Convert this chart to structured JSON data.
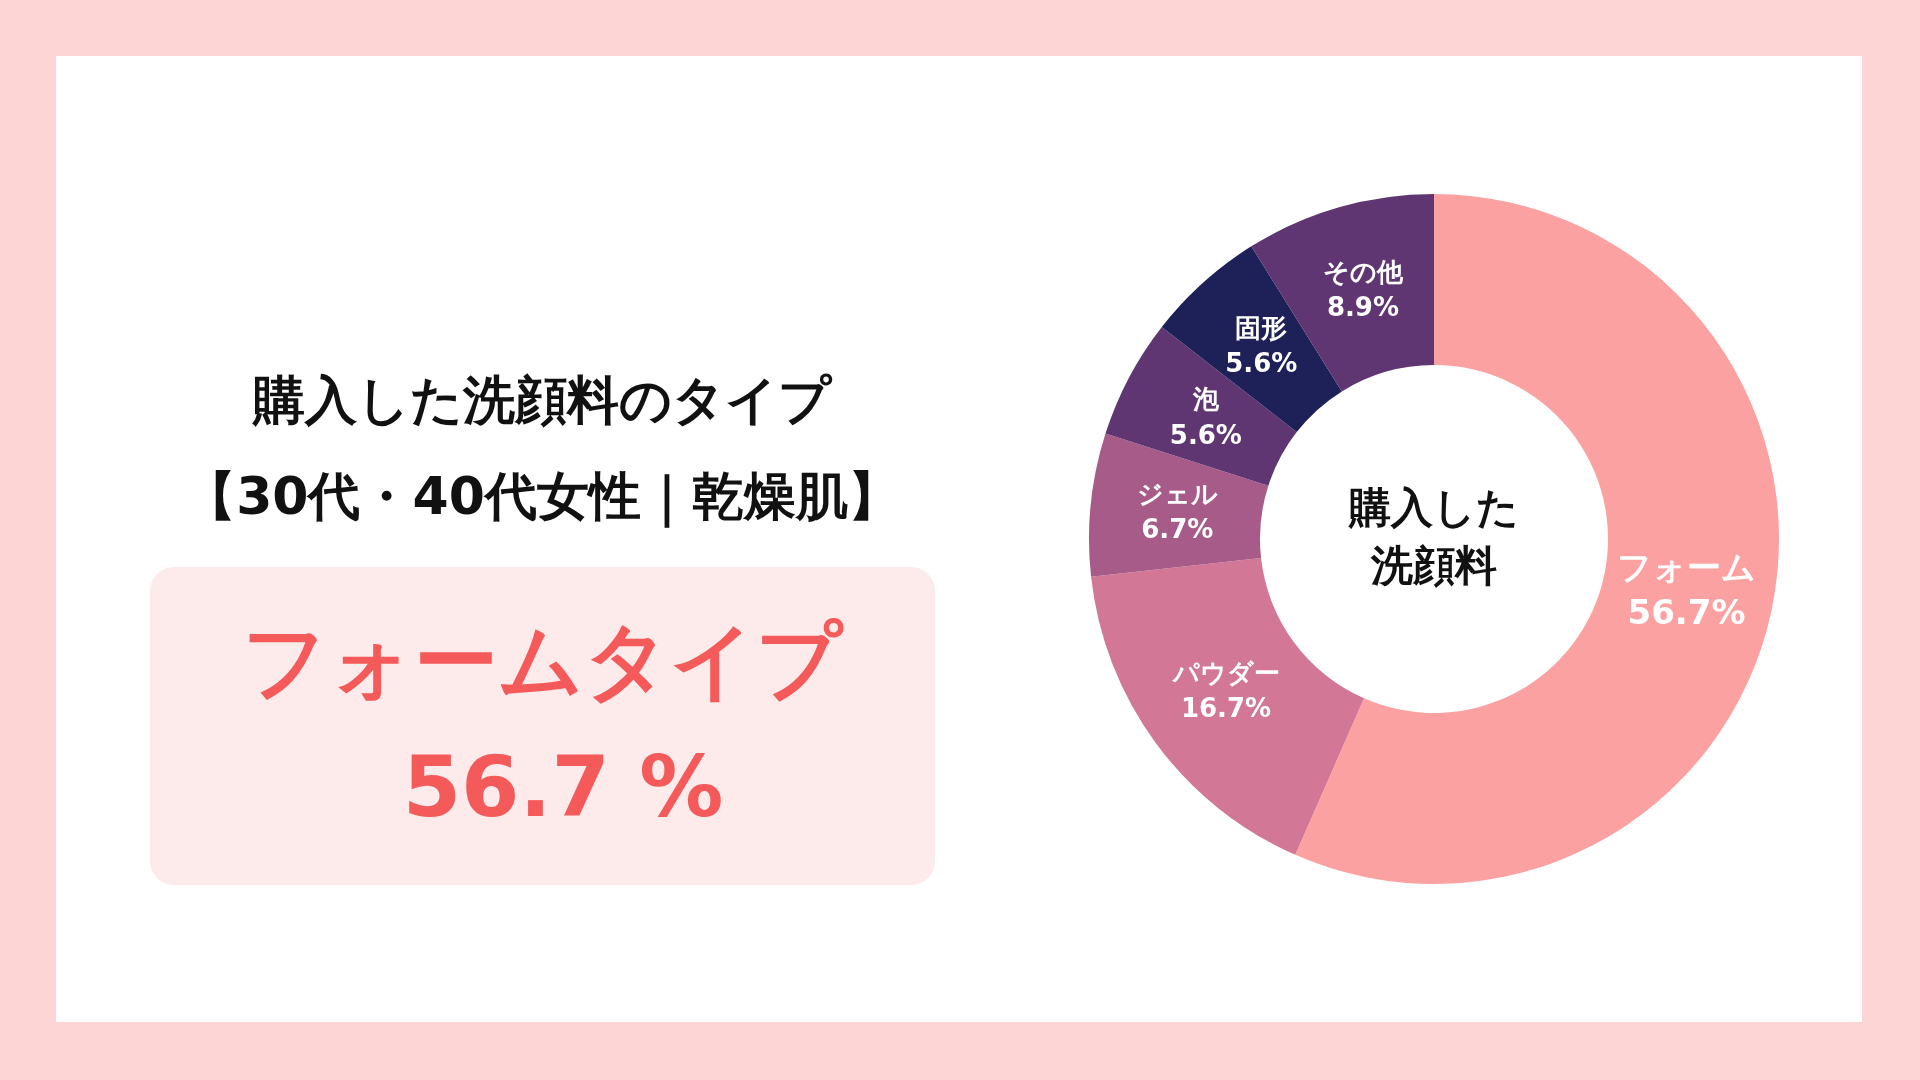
{
  "chart_data": {
    "type": "donut",
    "title": "購入した洗顔料のタイプ",
    "subtitle": "【30代・40代女性｜乾燥肌】",
    "categories": [
      "フォーム",
      "パウダー",
      "ジェル",
      "泡",
      "固形",
      "その他"
    ],
    "values": [
      56.7,
      16.7,
      6.7,
      5.6,
      5.6,
      8.9
    ],
    "value_labels": [
      "56.7%",
      "16.7%",
      "6.7%",
      "5.6%",
      "5.6%",
      "8.9%"
    ],
    "colors": [
      "#fca1a1",
      "#d27795",
      "#a65b88",
      "#5f3672",
      "#1d2158",
      "#5f3672"
    ],
    "annotations": [
      "フォームタイプ",
      "56.7 %",
      "購入した",
      "洗顔料"
    ]
  }
}
